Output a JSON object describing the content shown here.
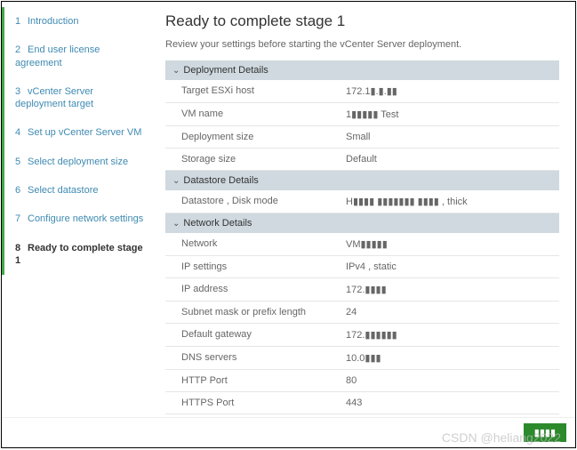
{
  "colors": {
    "section_header_bg": "#cfd9df",
    "done_step_text": "#3f8ab2",
    "step_border_active": "#45a645",
    "row_border": "#e6e6e6",
    "button_green": "#2c8a2c"
  },
  "sidebar": {
    "steps": [
      {
        "num": "1",
        "label": "Introduction",
        "state": "done"
      },
      {
        "num": "2",
        "label": "End user license agreement",
        "state": "done"
      },
      {
        "num": "3",
        "label": "vCenter Server deployment target",
        "state": "done"
      },
      {
        "num": "4",
        "label": "Set up vCenter Server VM",
        "state": "done"
      },
      {
        "num": "5",
        "label": "Select deployment size",
        "state": "done"
      },
      {
        "num": "6",
        "label": "Select datastore",
        "state": "done"
      },
      {
        "num": "7",
        "label": "Configure network settings",
        "state": "done"
      },
      {
        "num": "8",
        "label": "Ready to complete stage 1",
        "state": "active"
      }
    ]
  },
  "content": {
    "title": "Ready to complete stage 1",
    "subtitle": "Review your settings before starting the vCenter Server deployment.",
    "sections": [
      {
        "header": "Deployment Details",
        "rows": [
          {
            "label": "Target ESXi host",
            "value": "172.1▮.▮.▮▮"
          },
          {
            "label": "VM name",
            "value": "1▮▮▮▮▮ Test"
          },
          {
            "label": "Deployment size",
            "value": "Small"
          },
          {
            "label": "Storage size",
            "value": "Default"
          }
        ]
      },
      {
        "header": "Datastore Details",
        "rows": [
          {
            "label": "Datastore , Disk mode",
            "value": "H▮▮▮▮   ▮▮▮▮▮▮▮   ▮▮▮▮ , thick"
          }
        ]
      },
      {
        "header": "Network Details",
        "rows": [
          {
            "label": "Network",
            "value": "VM▮▮▮▮▮"
          },
          {
            "label": "IP settings",
            "value": "IPv4 , static"
          },
          {
            "label": "IP address",
            "value": "172.▮▮▮▮"
          },
          {
            "label": "Subnet mask or prefix length",
            "value": "24"
          },
          {
            "label": "Default gateway",
            "value": "172.▮▮▮▮▮▮"
          },
          {
            "label": "DNS servers",
            "value": "10.0▮▮▮"
          },
          {
            "label": "HTTP Port",
            "value": "80"
          },
          {
            "label": "HTTPS Port",
            "value": "443"
          }
        ]
      }
    ]
  },
  "footer": {
    "finish_label": "▮▮▮▮"
  },
  "watermark": "CSDN @heliang2022"
}
